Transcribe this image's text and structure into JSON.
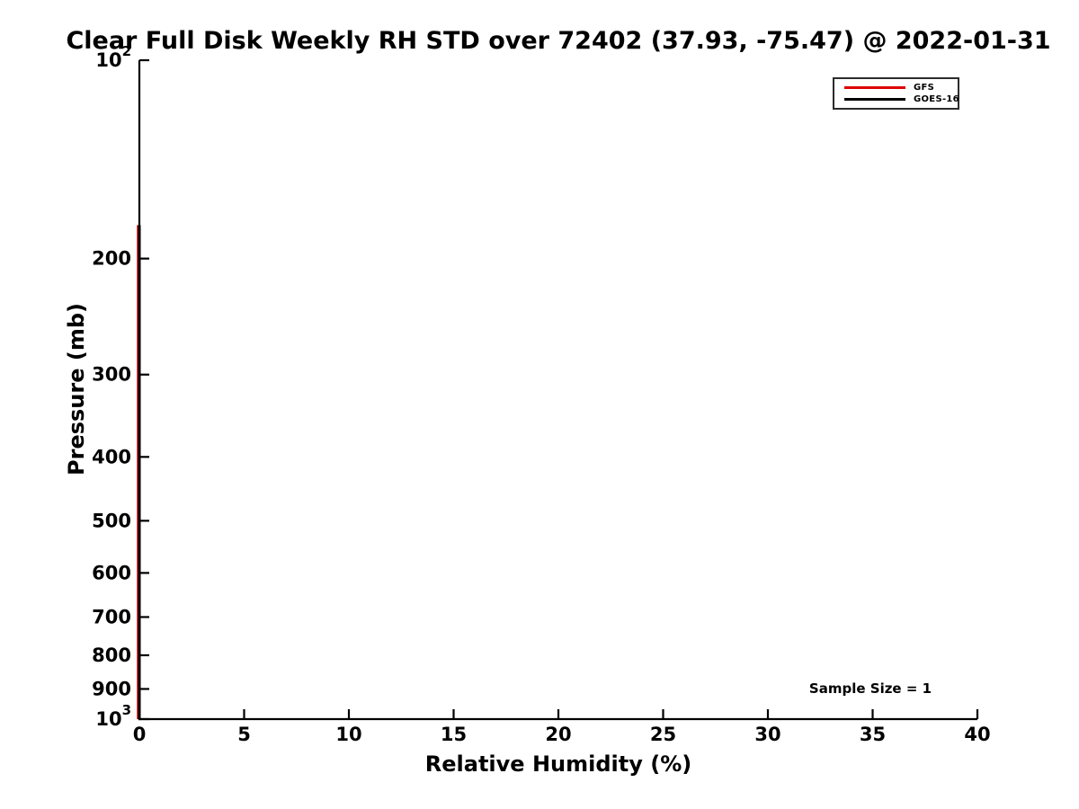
{
  "chart_data": {
    "type": "line",
    "title": "Clear Full Disk Weekly RH STD over 72402 (37.93, -75.47) @ 2022-01-31",
    "xlabel": "Relative Humidity (%)",
    "ylabel": "Pressure (mb)",
    "xlim": [
      0,
      40
    ],
    "ylim": [
      100,
      1000
    ],
    "y_scale": "log10",
    "grid": false,
    "tick_direction": "in",
    "x_ticks": [
      {
        "label": "0",
        "value": 0
      },
      {
        "label": "5",
        "value": 5
      },
      {
        "label": "10",
        "value": 10
      },
      {
        "label": "15",
        "value": 15
      },
      {
        "label": "20",
        "value": 20
      },
      {
        "label": "25",
        "value": 25
      },
      {
        "label": "30",
        "value": 30
      },
      {
        "label": "35",
        "value": 35
      },
      {
        "label": "40",
        "value": 40
      }
    ],
    "y_ticks": [
      {
        "label": "10^2",
        "value": 100
      },
      {
        "label": "200",
        "value": 200
      },
      {
        "label": "300",
        "value": 300
      },
      {
        "label": "400",
        "value": 400
      },
      {
        "label": "500",
        "value": 500
      },
      {
        "label": "600",
        "value": 600
      },
      {
        "label": "700",
        "value": 700
      },
      {
        "label": "800",
        "value": 800
      },
      {
        "label": "900",
        "value": 900
      },
      {
        "label": "10^3",
        "value": 1000
      }
    ],
    "series": [
      {
        "name": "GFS",
        "color": "#dd0000",
        "line_width": 3.5,
        "description": "vertical line at RH STD = 0, hidden beneath GOES-16 line",
        "points": [
          [
            0,
            178
          ],
          [
            0,
            1000
          ]
        ]
      },
      {
        "name": "GOES-16",
        "color": "#000000",
        "line_width": 3,
        "description": "vertical line at RH STD = 0 from ~178 mb to 1000 mb",
        "points": [
          [
            0,
            178
          ],
          [
            0,
            1000
          ]
        ]
      }
    ],
    "legend": {
      "position": "upper right",
      "items": [
        {
          "label": "GFS",
          "color": "#dd0000"
        },
        {
          "label": "GOES-16",
          "color": "#000000"
        }
      ]
    },
    "annotation": {
      "text": "Sample Size = 1",
      "x": 35,
      "y_pressure": 900
    },
    "axis_color": "#000000"
  }
}
